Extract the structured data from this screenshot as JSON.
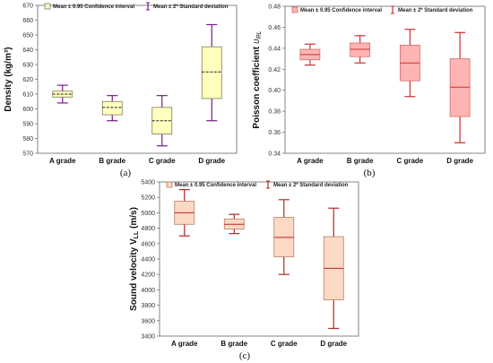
{
  "chart_data": [
    {
      "type": "box",
      "panel_label": "(a)",
      "ylabel": "Density (kg/m³)",
      "ylim": [
        570,
        670
      ],
      "yticks": [
        570,
        580,
        590,
        600,
        610,
        620,
        630,
        640,
        650,
        660,
        670
      ],
      "categories": [
        "A grade",
        "B grade",
        "C grade",
        "D grade"
      ],
      "legend": [
        "Mean ± 0.95 Confidence interval",
        "Mean ± 2* Standard deviation"
      ],
      "colors": {
        "box_fill": "#ffffbe",
        "box_stroke": "#7d7d5a",
        "whisker": "#7a1b8c"
      },
      "boxes": [
        {
          "category": "A grade",
          "whisker_low": 604,
          "box_low": 608,
          "mean": 610,
          "box_high": 612,
          "whisker_high": 616
        },
        {
          "category": "B grade",
          "whisker_low": 592,
          "box_low": 596,
          "mean": 601,
          "box_high": 605,
          "whisker_high": 609
        },
        {
          "category": "C grade",
          "whisker_low": 575,
          "box_low": 583,
          "mean": 592,
          "box_high": 601,
          "whisker_high": 609
        },
        {
          "category": "D grade",
          "whisker_low": 592,
          "box_low": 607,
          "mean": 625,
          "box_high": 642,
          "whisker_high": 657
        }
      ]
    },
    {
      "type": "box",
      "panel_label": "(b)",
      "ylabel": "Poisson coefficient",
      "ylabel_symbol": "υ",
      "ylabel_subscript": "RL",
      "ylim": [
        0.34,
        0.48
      ],
      "yticks": [
        "0.34",
        "0.36",
        "0.38",
        "0.40",
        "0.42",
        "0.44",
        "0.46",
        "0.48"
      ],
      "categories": [
        "A grade",
        "B grade",
        "C grade",
        "D grade"
      ],
      "legend": [
        "Mean ± 0.95 Confidence interval",
        "Mean ± 2* Standard deviation"
      ],
      "colors": {
        "box_fill": "#ffb4b4",
        "box_stroke": "#d26e6e",
        "whisker": "#c83232"
      },
      "boxes": [
        {
          "category": "A grade",
          "whisker_low": 0.424,
          "box_low": 0.429,
          "mean": 0.434,
          "box_high": 0.439,
          "whisker_high": 0.444
        },
        {
          "category": "B grade",
          "whisker_low": 0.426,
          "box_low": 0.432,
          "mean": 0.439,
          "box_high": 0.445,
          "whisker_high": 0.452
        },
        {
          "category": "C grade",
          "whisker_low": 0.394,
          "box_low": 0.409,
          "mean": 0.426,
          "box_high": 0.443,
          "whisker_high": 0.458
        },
        {
          "category": "D grade",
          "whisker_low": 0.35,
          "box_low": 0.375,
          "mean": 0.403,
          "box_high": 0.43,
          "whisker_high": 0.455
        }
      ]
    },
    {
      "type": "box",
      "panel_label": "(c)",
      "ylabel": "Sound velocity V",
      "ylabel_subscript": "LL",
      "ylabel_unit": " (m/s)",
      "ylim": [
        3400,
        5400
      ],
      "yticks": [
        3400,
        3600,
        3800,
        4000,
        4200,
        4400,
        4600,
        4800,
        5000,
        5200,
        5400
      ],
      "categories": [
        "A grade",
        "B grade",
        "C grade",
        "D grade"
      ],
      "legend": [
        "Mean ± 0.95 Confidence interval",
        "Mean ± 2* Standard deviation"
      ],
      "colors": {
        "box_fill": "#fcd9c4",
        "box_stroke": "#b47d64",
        "whisker": "#b42828"
      },
      "boxes": [
        {
          "category": "A grade",
          "whisker_low": 4700,
          "box_low": 4850,
          "mean": 5000,
          "box_high": 5150,
          "whisker_high": 5300
        },
        {
          "category": "B grade",
          "whisker_low": 4730,
          "box_low": 4790,
          "mean": 4850,
          "box_high": 4920,
          "whisker_high": 4980
        },
        {
          "category": "C grade",
          "whisker_low": 4200,
          "box_low": 4430,
          "mean": 4680,
          "box_high": 4940,
          "whisker_high": 5170
        },
        {
          "category": "D grade",
          "whisker_low": 3500,
          "box_low": 3870,
          "mean": 4280,
          "box_high": 4690,
          "whisker_high": 5060
        }
      ]
    }
  ]
}
